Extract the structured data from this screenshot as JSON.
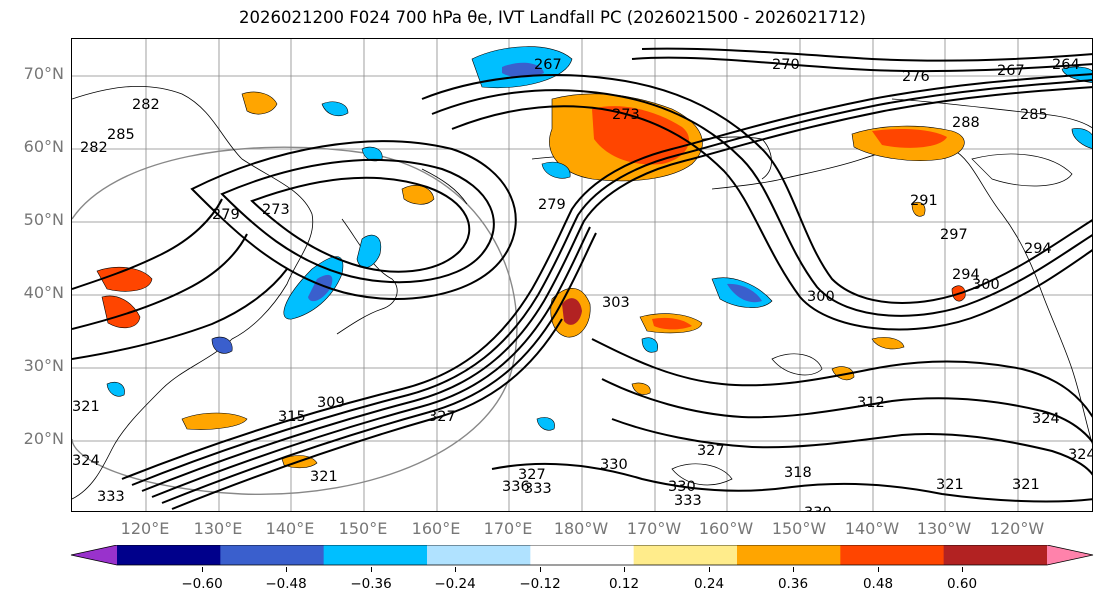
{
  "title": "2026021200 F024 700 hPa θe, IVT Landfall PC (2026021500 - 2026021712)",
  "lat_labels": [
    "70°N",
    "60°N",
    "50°N",
    "40°N",
    "30°N",
    "20°N"
  ],
  "lon_labels": [
    "120°E",
    "130°E",
    "140°E",
    "150°E",
    "160°E",
    "170°E",
    "180°W",
    "170°W",
    "160°W",
    "150°W",
    "140°W",
    "130°W",
    "120°W"
  ],
  "colorbar": {
    "ticks": [
      "−0.60",
      "−0.48",
      "−0.36",
      "−0.24",
      "−0.12",
      "0.12",
      "0.24",
      "0.36",
      "0.48",
      "0.60"
    ],
    "colors": [
      "#9932cc",
      "#00008b",
      "#3a5fcd",
      "#00bfff",
      "#b0e2ff",
      "#ffffff",
      "#ffec8b",
      "#ffa500",
      "#ff4500",
      "#b22222",
      "#ff82ab"
    ]
  },
  "contour_labels": [
    "267",
    "270",
    "276",
    "267",
    "264",
    "285",
    "288",
    "282",
    "285",
    "282",
    "273",
    "279",
    "273",
    "279",
    "297",
    "300",
    "303",
    "300",
    "312",
    "309",
    "315",
    "327",
    "330",
    "327",
    "318",
    "321",
    "324",
    "321",
    "324",
    "321",
    "330",
    "333",
    "327",
    "333",
    "336",
    "333",
    "324",
    "321",
    "330",
    "291",
    "294",
    "294"
  ]
}
